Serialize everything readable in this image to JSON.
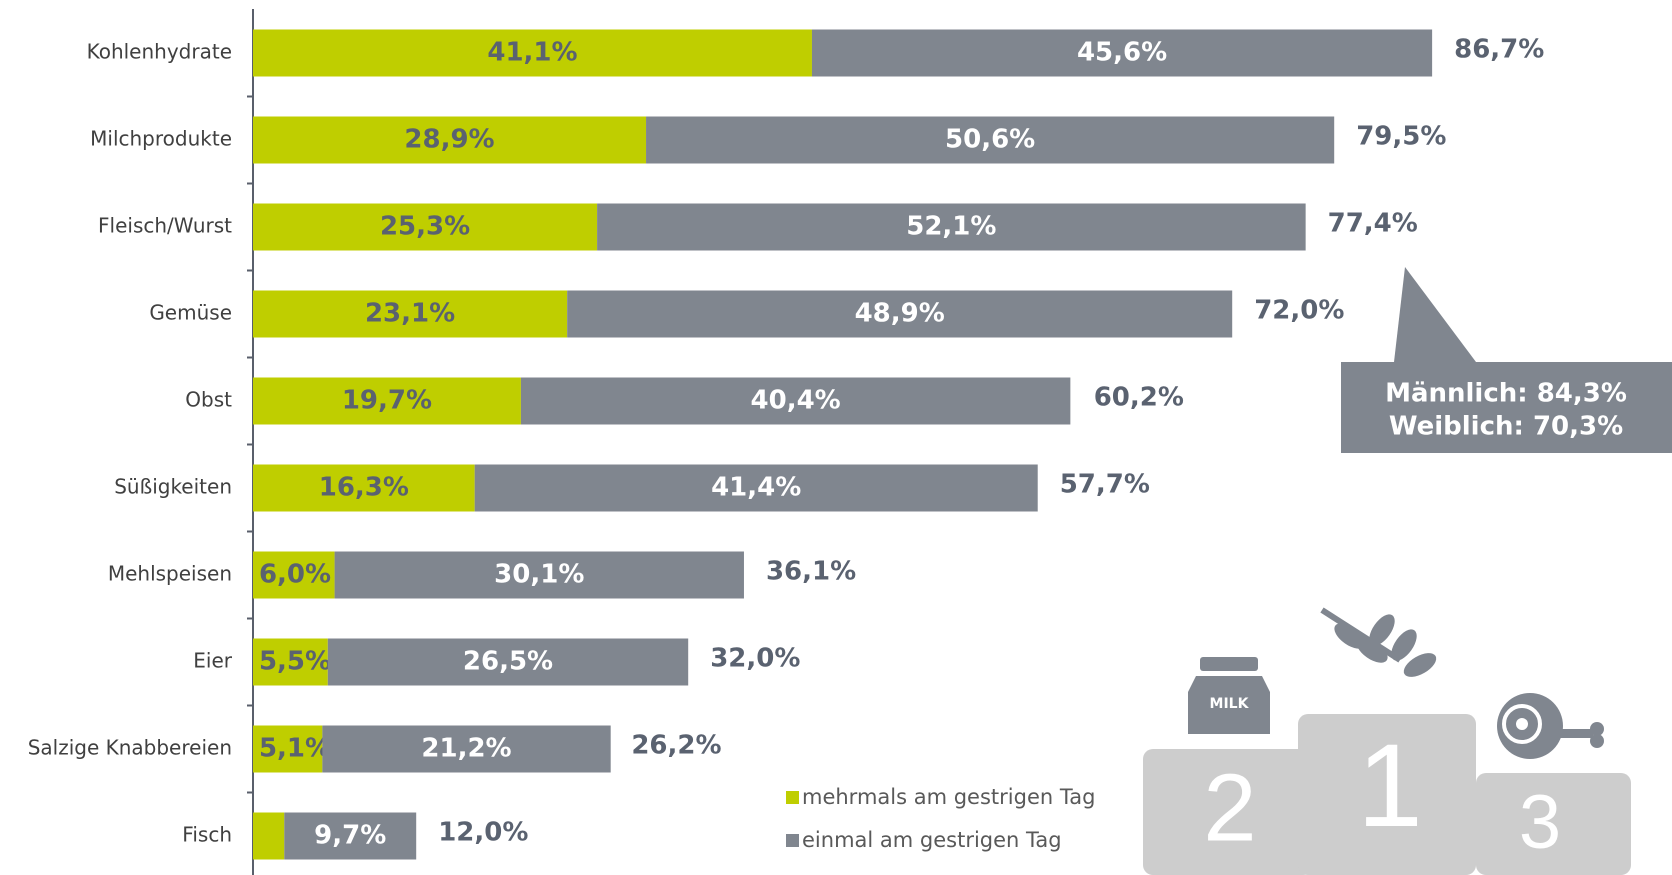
{
  "chart_data": {
    "type": "stacked_barh",
    "categories": [
      "Kohlenhydrate",
      "Milchprodukte",
      "Fleisch/Wurst",
      "Gemüse",
      "Obst",
      "Süßigkeiten",
      "Mehlspeisen",
      "Eier",
      "Salzige Knabbereien",
      "Fisch"
    ],
    "series": [
      {
        "name": "mehrmals am gestrigen Tag",
        "color": "#bfce00",
        "values": [
          41.1,
          28.9,
          25.3,
          23.1,
          19.7,
          16.3,
          6.0,
          5.5,
          5.1,
          2.3
        ],
        "value_labels": [
          "41,1%",
          "28,9%",
          "25,3%",
          "23,1%",
          "19,7%",
          "16,3%",
          "6,0%",
          "5,5%",
          "5,1%",
          null
        ]
      },
      {
        "name": "einmal am gestrigen Tag",
        "color": "#80868f",
        "values": [
          45.6,
          50.6,
          52.1,
          48.9,
          40.4,
          41.4,
          30.1,
          26.5,
          21.2,
          9.7
        ],
        "value_labels": [
          "45,6%",
          "50,6%",
          "52,1%",
          "48,9%",
          "40,4%",
          "41,4%",
          "30,1%",
          "26,5%",
          "21,2%",
          "9,7%"
        ]
      }
    ],
    "totals": [
      86.7,
      79.5,
      77.4,
      72.0,
      60.2,
      57.7,
      36.1,
      32.0,
      26.2,
      12.0
    ],
    "total_labels": [
      "86,7%",
      "79,5%",
      "77,4%",
      "72,0%",
      "60,2%",
      "57,7%",
      "36,1%",
      "32,0%",
      "26,2%",
      "12,0%"
    ],
    "xlim": [
      0,
      100
    ],
    "annotations": [
      "Männlich: 84,3%",
      "Weiblich: 70,3%"
    ],
    "podium": [
      "2",
      "1",
      "3"
    ],
    "icon_label": "MILK"
  }
}
